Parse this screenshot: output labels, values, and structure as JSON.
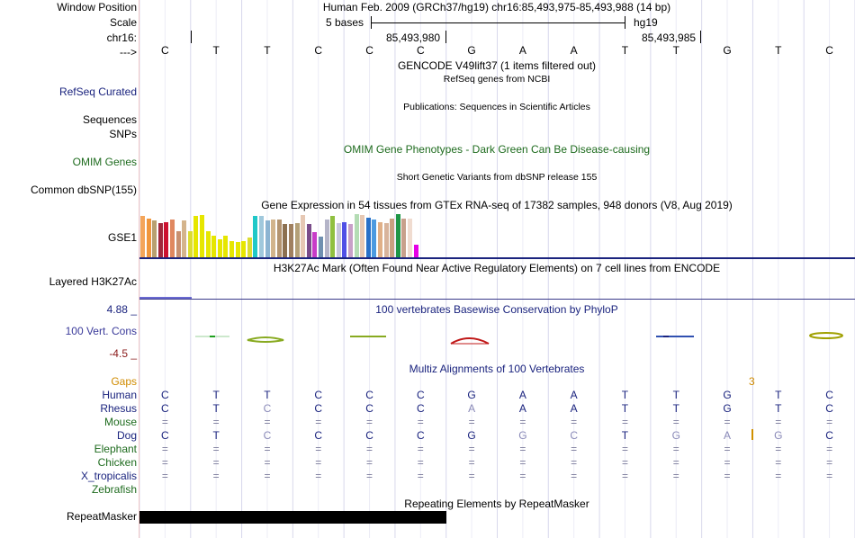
{
  "header": {
    "window_position_label": "Window Position",
    "window_position_value": "Human Feb. 2009 (GRCh37/hg19)   chr16:85,493,975-85,493,988 (14 bp)",
    "scale_label": "Scale",
    "scale_bases": "5 bases",
    "scale_assembly": "hg19",
    "chrom_label": "chr16:",
    "pos1": "85,493,980",
    "pos2": "85,493,985",
    "strand_label": "--->"
  },
  "bases": [
    "C",
    "T",
    "T",
    "C",
    "C",
    "C",
    "G",
    "A",
    "A",
    "T",
    "T",
    "G",
    "T",
    "C"
  ],
  "tracks": {
    "gencode_title": "GENCODE V49lift37 (1 items filtered out)",
    "refseq_label": "RefSeq Curated",
    "refseq_title": "RefSeq genes from NCBI",
    "pubs_title": "Publications: Sequences in Scientific Articles",
    "sequences_label": "Sequences",
    "snps_label": "SNPs",
    "omim_title": "OMIM Gene Phenotypes - Dark Green Can Be Disease-causing",
    "omim_label": "OMIM Genes",
    "dbsnp_title": "Short Genetic Variants from dbSNP release 155",
    "dbsnp_label": "Common dbSNP(155)",
    "gtex_title": "Gene Expression in 54 tissues from GTEx RNA-seq of 17382 samples, 948 donors (V8, Aug 2019)",
    "gtex_label": "GSE1",
    "h3k_title": "H3K27Ac Mark (Often Found Near Active Regulatory Elements) on 7 cell lines from ENCODE",
    "h3k_label": "Layered H3K27Ac",
    "cons_max": "4.88 _",
    "cons_title": "100 vertebrates Basewise Conservation by PhyloP",
    "cons_label": "100 Vert. Cons",
    "cons_min": "-4.5 _",
    "multiz_title": "Multiz Alignments of 100 Vertebrates",
    "gaps_label": "Gaps",
    "gaps_value": "3",
    "repeat_title": "Repeating Elements by RepeatMasker",
    "repeat_label": "RepeatMasker"
  },
  "gtex_bars": [
    {
      "color": "#f4a55a",
      "value": 0.95
    },
    {
      "color": "#f0963c",
      "value": 0.9
    },
    {
      "color": "#b8a070",
      "value": 0.85
    },
    {
      "color": "#a0283c",
      "value": 0.8
    },
    {
      "color": "#cc1030",
      "value": 0.82
    },
    {
      "color": "#e08860",
      "value": 0.88
    },
    {
      "color": "#c89070",
      "value": 0.6
    },
    {
      "color": "#d4b48c",
      "value": 0.85
    },
    {
      "color": "#dcdc32",
      "value": 0.6
    },
    {
      "color": "#e6e600",
      "value": 0.95
    },
    {
      "color": "#e6e600",
      "value": 0.98
    },
    {
      "color": "#e6e600",
      "value": 0.6
    },
    {
      "color": "#e6e600",
      "value": 0.5
    },
    {
      "color": "#e6e600",
      "value": 0.42
    },
    {
      "color": "#e6e600",
      "value": 0.5
    },
    {
      "color": "#e6e600",
      "value": 0.38
    },
    {
      "color": "#e6e600",
      "value": 0.36
    },
    {
      "color": "#e6e600",
      "value": 0.38
    },
    {
      "color": "#dcdc32",
      "value": 0.45
    },
    {
      "color": "#20c8c8",
      "value": 0.95
    },
    {
      "color": "#a0c8dc",
      "value": 0.95
    },
    {
      "color": "#8cb4d2",
      "value": 0.85
    },
    {
      "color": "#d2b48c",
      "value": 0.88
    },
    {
      "color": "#b49470",
      "value": 0.88
    },
    {
      "color": "#8c7050",
      "value": 0.78
    },
    {
      "color": "#a08060",
      "value": 0.78
    },
    {
      "color": "#b4a078",
      "value": 0.8
    },
    {
      "color": "#e6c8b4",
      "value": 0.98
    },
    {
      "color": "#7a4c8a",
      "value": 0.78
    },
    {
      "color": "#c83cc8",
      "value": 0.58
    },
    {
      "color": "#7090b0",
      "value": 0.48
    },
    {
      "color": "#b4b4c8",
      "value": 0.88
    },
    {
      "color": "#90c040",
      "value": 0.95
    },
    {
      "color": "#c8c8dc",
      "value": 0.8
    },
    {
      "color": "#5050e6",
      "value": 0.82
    },
    {
      "color": "#c8a0c8",
      "value": 0.78
    },
    {
      "color": "#b4dcb4",
      "value": 1.0
    },
    {
      "color": "#e6c8b4",
      "value": 0.98
    },
    {
      "color": "#2870c8",
      "value": 0.92
    },
    {
      "color": "#4c9ae0",
      "value": 0.88
    },
    {
      "color": "#e0b088",
      "value": 0.82
    },
    {
      "color": "#d8b49c",
      "value": 0.8
    },
    {
      "color": "#c8a080",
      "value": 0.9
    },
    {
      "color": "#1e9646",
      "value": 1.0
    },
    {
      "color": "#c8a08c",
      "value": 0.9
    },
    {
      "color": "#f0dcd0",
      "value": 0.9
    },
    {
      "color": "#e600e6",
      "value": 0.3
    }
  ],
  "multiz": {
    "species": [
      {
        "name": "Human",
        "color": "#1a237e",
        "seq": [
          "C",
          "T",
          "T",
          "C",
          "C",
          "C",
          "G",
          "A",
          "A",
          "T",
          "T",
          "G",
          "T",
          "C"
        ],
        "dim": []
      },
      {
        "name": "Rhesus",
        "color": "#1a237e",
        "seq": [
          "C",
          "T",
          "C",
          "C",
          "C",
          "C",
          "A",
          "A",
          "A",
          "T",
          "T",
          "G",
          "T",
          "C"
        ],
        "dim": [
          2,
          6
        ]
      },
      {
        "name": "Mouse",
        "color": "#1e6b1e",
        "seq": [
          "=",
          "=",
          "=",
          "=",
          "=",
          "=",
          "=",
          "=",
          "=",
          "=",
          "=",
          "=",
          "=",
          "="
        ],
        "dim": []
      },
      {
        "name": "Dog",
        "color": "#1a237e",
        "seq": [
          "C",
          "T",
          "C",
          "C",
          "C",
          "C",
          "G",
          "G",
          "C",
          "T",
          "G",
          "A",
          "G",
          "C"
        ],
        "dim": [
          2,
          7,
          8,
          10,
          11,
          12
        ]
      },
      {
        "name": "Elephant",
        "color": "#1e6b1e",
        "seq": [
          "=",
          "=",
          "=",
          "=",
          "=",
          "=",
          "=",
          "=",
          "=",
          "=",
          "=",
          "=",
          "=",
          "="
        ],
        "dim": []
      },
      {
        "name": "Chicken",
        "color": "#1e6b1e",
        "seq": [
          "=",
          "=",
          "=",
          "=",
          "=",
          "=",
          "=",
          "=",
          "=",
          "=",
          "=",
          "=",
          "=",
          "="
        ],
        "dim": []
      },
      {
        "name": "X_tropicalis",
        "color": "#1a237e",
        "seq": [
          "=",
          "=",
          "=",
          "=",
          "=",
          "=",
          "=",
          "=",
          "=",
          "=",
          "=",
          "=",
          "=",
          "="
        ],
        "dim": []
      },
      {
        "name": "Zebrafish",
        "color": "#1e6b1e",
        "seq": [
          "",
          "",
          "",
          "",
          "",
          "",
          "",
          "",
          "",
          "",
          "",
          "",
          "",
          ""
        ],
        "dim": []
      }
    ]
  }
}
